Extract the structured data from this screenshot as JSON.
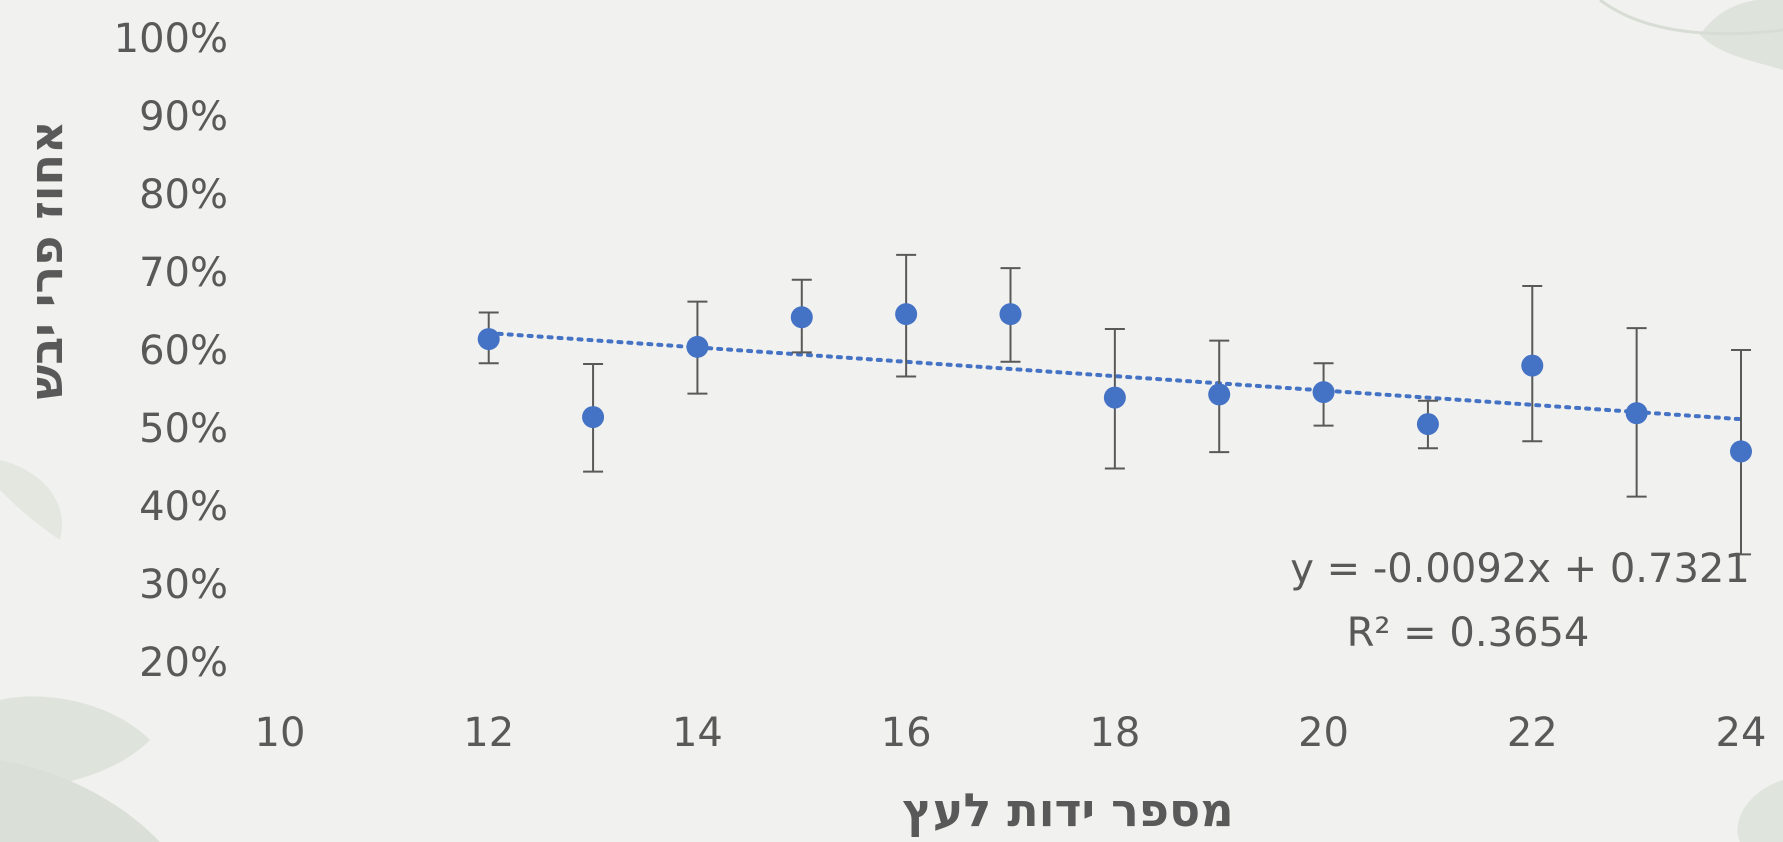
{
  "chart_data": {
    "type": "scatter",
    "xlabel": "מספר ידות לעץ",
    "ylabel": "אחוז פרי יבש",
    "xlim": [
      10,
      24
    ],
    "ylim": [
      0.2,
      1.0
    ],
    "x_ticks": [
      "10",
      "12",
      "14",
      "16",
      "18",
      "20",
      "22",
      "24"
    ],
    "y_ticks": [
      "100%",
      "90%",
      "80%",
      "70%",
      "60%",
      "50%",
      "40%",
      "30%",
      "20%"
    ],
    "grid": false,
    "legend": "none",
    "series": [
      {
        "x": [
          12,
          13,
          14,
          15,
          16,
          17,
          18,
          19,
          20,
          21,
          22,
          23,
          24
        ],
        "y": [
          0.614,
          0.514,
          0.604,
          0.642,
          0.646,
          0.646,
          0.539,
          0.543,
          0.546,
          0.505,
          0.58,
          0.519,
          0.47
        ],
        "error_low": [
          0.583,
          0.444,
          0.544,
          0.597,
          0.566,
          0.585,
          0.448,
          0.469,
          0.503,
          0.474,
          0.483,
          0.412,
          0.338
        ],
        "error_high": [
          0.648,
          0.582,
          0.662,
          0.69,
          0.722,
          0.705,
          0.627,
          0.612,
          0.583,
          0.535,
          0.682,
          0.628,
          0.6
        ],
        "color": "#4472c4"
      }
    ],
    "trendline": {
      "type": "linear",
      "slope": -0.0092,
      "intercept": 0.7321,
      "x_range": [
        12,
        24
      ],
      "style": "dotted",
      "color": "#4472c4",
      "equation": "y = -0.0092x + 0.7321",
      "r_squared": "R² = 0.3654"
    },
    "errorbar_color": "#595959"
  }
}
